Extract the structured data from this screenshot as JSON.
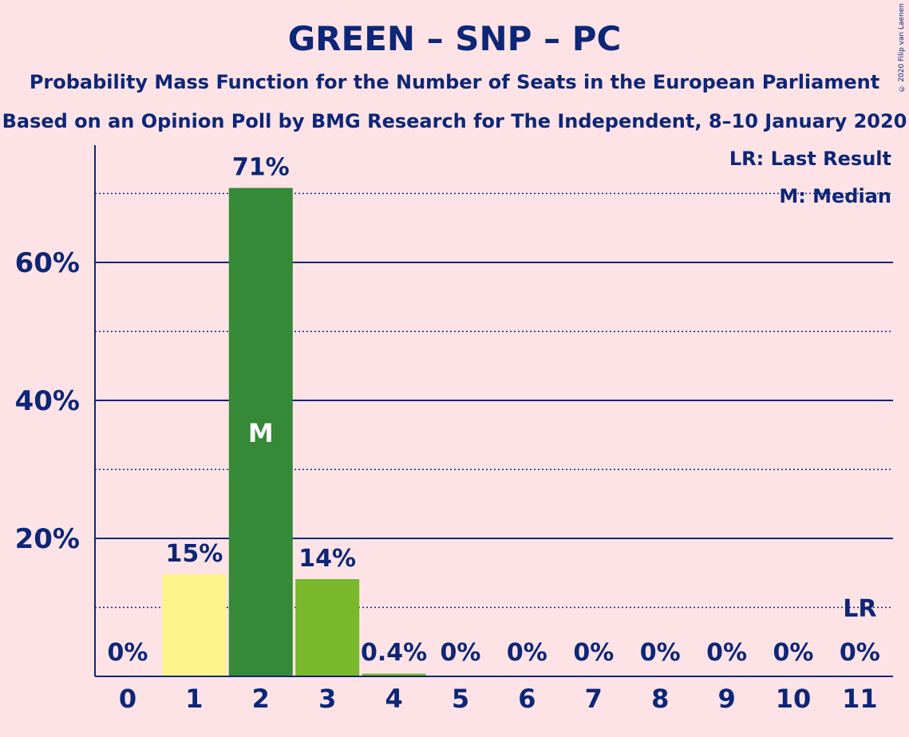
{
  "chart_data": {
    "type": "bar",
    "title": "GREEN – SNP – PC",
    "subtitle1": "Probability Mass Function for the Number of Seats in the European Parliament",
    "subtitle2": "Based on an Opinion Poll by BMG Research for The Independent, 8–10 January 2020",
    "copyright": "© 2020 Filip van Laenen",
    "categories": [
      "0",
      "1",
      "2",
      "3",
      "4",
      "5",
      "6",
      "7",
      "8",
      "9",
      "10",
      "11"
    ],
    "values": [
      0,
      14.8,
      70.8,
      14.1,
      0.4,
      0,
      0,
      0,
      0,
      0,
      0,
      0
    ],
    "labels": [
      "0%",
      "15%",
      "71%",
      "14%",
      "0.4%",
      "0%",
      "0%",
      "0%",
      "0%",
      "0%",
      "0%",
      "0%"
    ],
    "bar_colors": [
      "#fef58a",
      "#fef58a",
      "#358937",
      "#78b82a",
      "#78b82a",
      "#78b82a",
      "#78b82a",
      "#78b82a",
      "#78b82a",
      "#78b82a",
      "#78b82a",
      "#78b82a"
    ],
    "ylim": [
      0,
      77
    ],
    "y_ticks": [
      20,
      40,
      60
    ],
    "y_tick_labels": [
      "20%",
      "40%",
      "60%"
    ],
    "dotted_lines": [
      10,
      30,
      50,
      70
    ],
    "median_index": 2,
    "median_label": "M",
    "last_result_index": 11,
    "last_result_label": "LR",
    "legend": {
      "lr": "LR: Last Result",
      "m": "M: Median"
    },
    "colors": {
      "background": "#fde3e6",
      "text": "#0d2677",
      "axis": "#0d2677"
    }
  }
}
